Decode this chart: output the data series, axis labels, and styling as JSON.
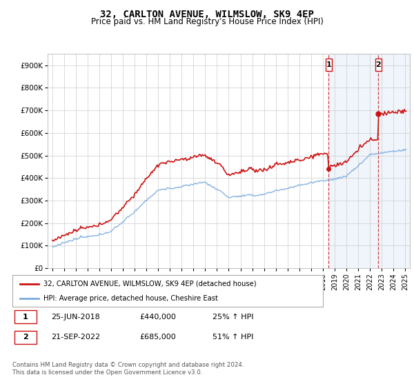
{
  "title": "32, CARLTON AVENUE, WILMSLOW, SK9 4EP",
  "subtitle": "Price paid vs. HM Land Registry's House Price Index (HPI)",
  "hpi_color": "#7aaadd",
  "price_color": "#cc1111",
  "grid_color": "#cccccc",
  "annotation1_date": "25-JUN-2018",
  "annotation1_price": "£440,000",
  "annotation1_hpi": "25% ↑ HPI",
  "annotation2_date": "21-SEP-2022",
  "annotation2_price": "£685,000",
  "annotation2_hpi": "51% ↑ HPI",
  "legend_line1": "32, CARLTON AVENUE, WILMSLOW, SK9 4EP (detached house)",
  "legend_line2": "HPI: Average price, detached house, Cheshire East",
  "footer": "Contains HM Land Registry data © Crown copyright and database right 2024.\nThis data is licensed under the Open Government Licence v3.0.",
  "ylim": [
    0,
    950000
  ],
  "yticks": [
    0,
    100000,
    200000,
    300000,
    400000,
    500000,
    600000,
    700000,
    800000,
    900000
  ],
  "ytick_labels": [
    "£0",
    "£100K",
    "£200K",
    "£300K",
    "£400K",
    "£500K",
    "£600K",
    "£700K",
    "£800K",
    "£900K"
  ],
  "sale1_x": 2018.5,
  "sale1_y": 440000,
  "sale2_x": 2022.72,
  "sale2_y": 685000,
  "highlight_color": "#ddeeff",
  "xlim_left": 1994.6,
  "xlim_right": 2025.4
}
